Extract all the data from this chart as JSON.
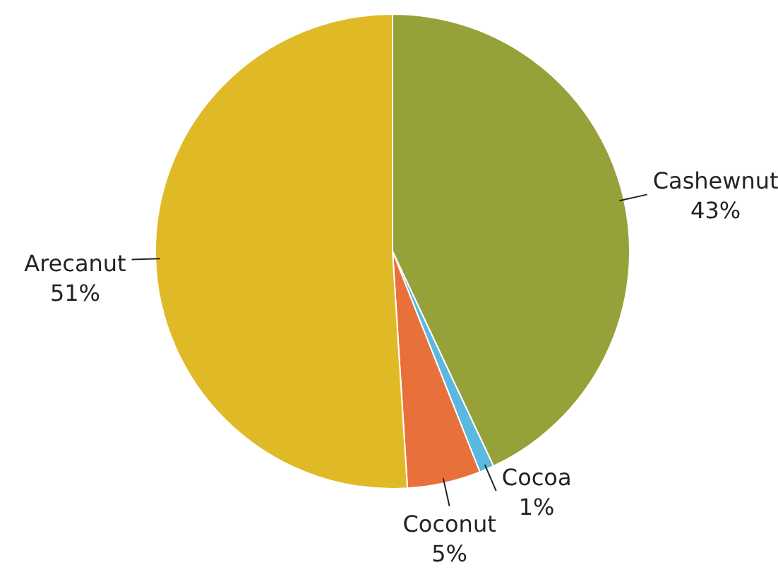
{
  "chart_data": {
    "type": "pie",
    "categories": [
      "Cashewnut",
      "Cocoa",
      "Coconut",
      "Arecanut"
    ],
    "values": [
      43,
      1,
      5,
      51
    ],
    "colors": [
      "#97a13a",
      "#5bb8e0",
      "#e8703a",
      "#e0ba26"
    ],
    "value_labels": [
      "43%",
      "1%",
      "5%",
      "51%"
    ]
  }
}
